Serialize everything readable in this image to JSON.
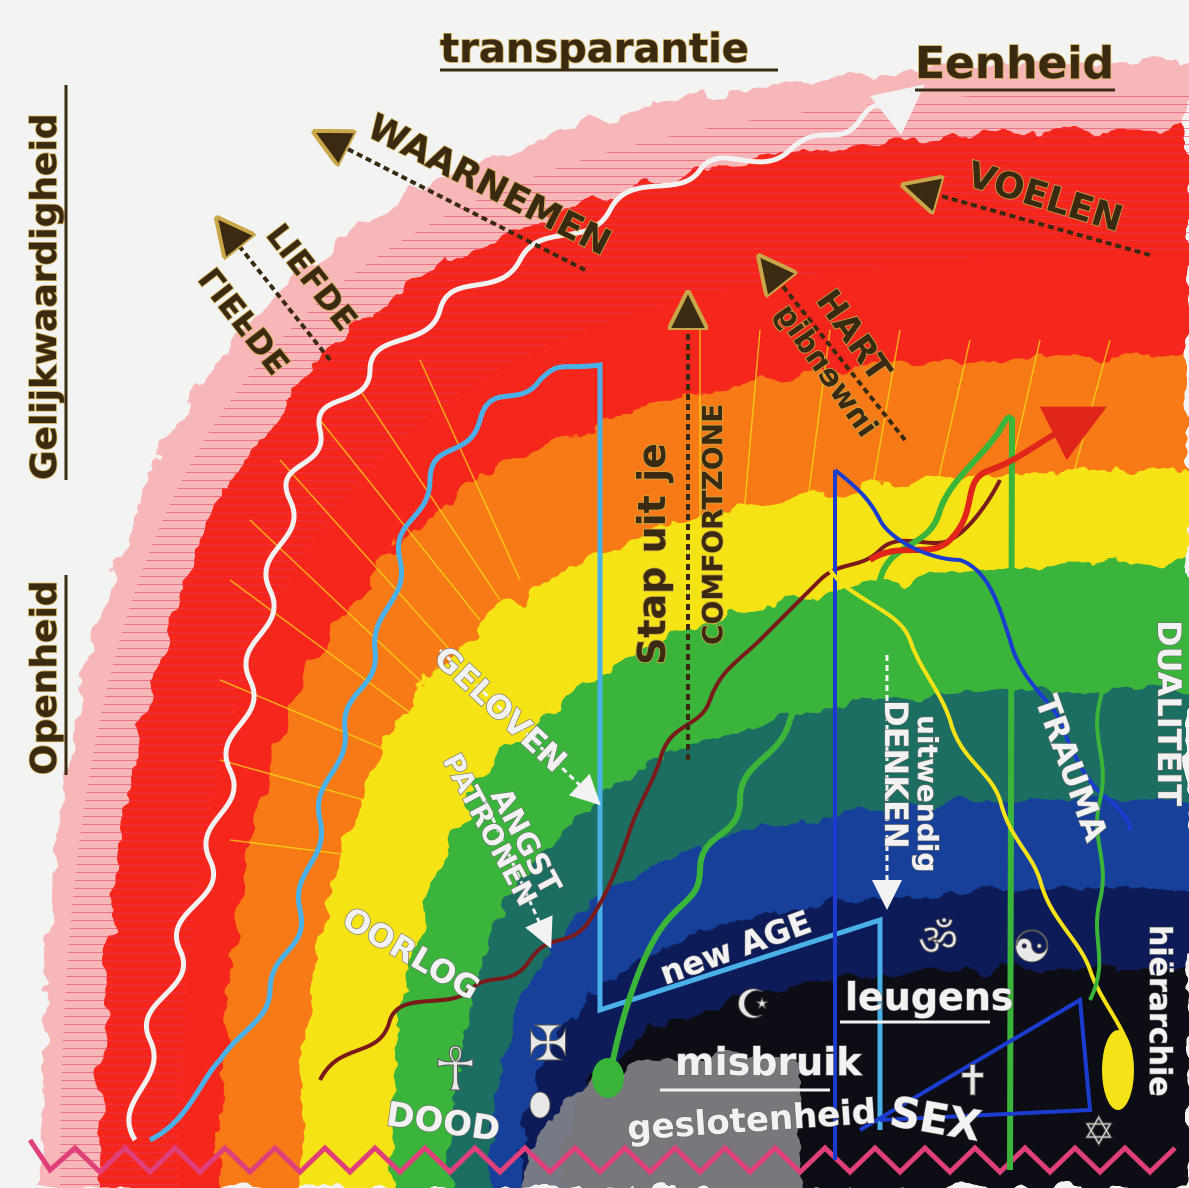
{
  "palette": {
    "red": "#f5261b",
    "orange": "#f77a14",
    "yellow": "#f6e317",
    "green": "#3bb43a",
    "teal": "#1a6e63",
    "blue": "#123f9a",
    "indigo": "#0c1f58",
    "black": "#0e0e12",
    "gray": "#8a8a8e",
    "pink_edge": "#f7b7b9",
    "gold": "#c9a648"
  },
  "labels_top": {
    "transparantie": "transparantie",
    "eenheid": "Eenheid"
  },
  "labels_left": {
    "gelijkwaardigheid": "Gelijkwaardigheid",
    "openheid": "Openheid"
  },
  "labels_arc": {
    "liefde": "LIEFDE",
    "liefde_mirror": "LIEFDE",
    "waarnemen": "WAARNEMEN",
    "voelen": "VOELEN",
    "hart": "HART",
    "inwendig": "inwendig",
    "stap_uit_je": "Stap uit je",
    "comfortzone": "COMFORTZONE"
  },
  "labels_lower": {
    "geloven": "GELOVEN",
    "angst": "ANGST",
    "patronen": "PATRONEN",
    "oorlog": "OORLOG",
    "dood": "DOOD",
    "new_age": "new AGE",
    "leugens": "leugens",
    "misbruik": "misbruik",
    "geslotenheid": "geslotenheid",
    "sex": "SEX",
    "denken": "DENKEN",
    "uitwendig": "uitwendig",
    "trauma": "TRAUMA",
    "dualiteit": "DUALITEIT",
    "hierarchie": "hiërarchie"
  },
  "symbols": {
    "ankh": "☥",
    "cross_patee": "✠",
    "crescent": "☪",
    "om": "ॐ",
    "yin_yang": "☯",
    "latin_cross": "✝",
    "star_of_david": "✡",
    "teardrop": "💧"
  }
}
